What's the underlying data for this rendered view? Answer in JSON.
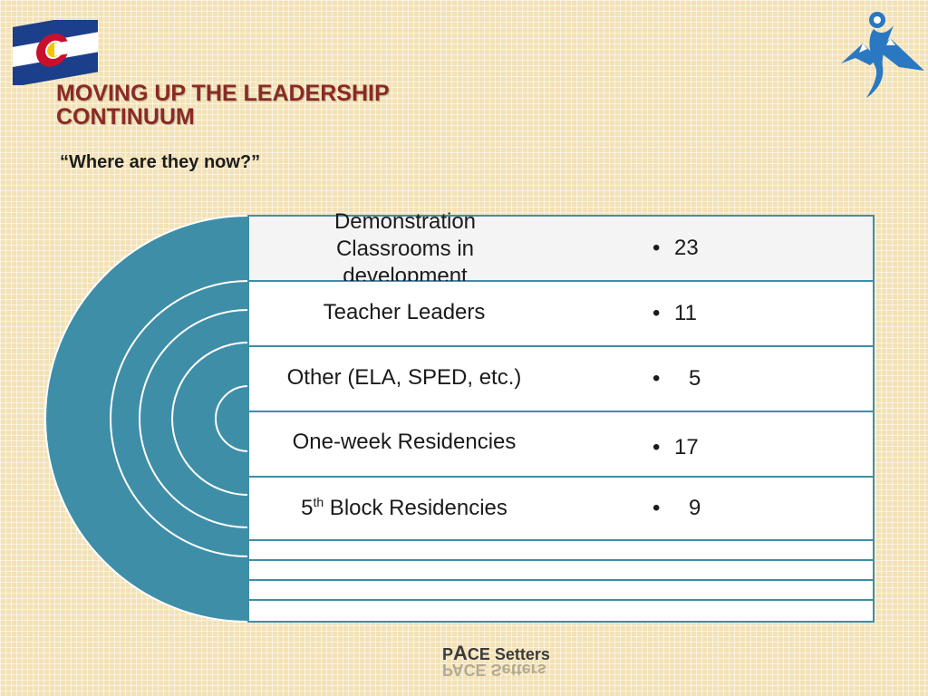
{
  "title_line1": "MOVING UP THE LEADERSHIP",
  "title_line2": "CONTINUUM",
  "subtitle": "“Where are they now?”",
  "rows": [
    {
      "label": "Demonstration Classrooms in development",
      "value": "23"
    },
    {
      "label": "Teacher Leaders",
      "value": "11"
    },
    {
      "label": "Other (ELA, SPED, etc.)",
      "value": "5"
    },
    {
      "label": "One-week Residencies",
      "value": "17"
    },
    {
      "label_prefix": "5",
      "label_sup": "th",
      "label_rest": " Block Residencies",
      "value": "9"
    }
  ],
  "bullet": "•",
  "brand": {
    "p": "P",
    "a": "A",
    "rest": "CE Setters"
  },
  "colors": {
    "teal": "#3e8ea8",
    "title": "#8a2a24",
    "background": "#f3e2b7"
  },
  "icons": [
    "colorado-flag-icon",
    "pace-logo-icon"
  ]
}
